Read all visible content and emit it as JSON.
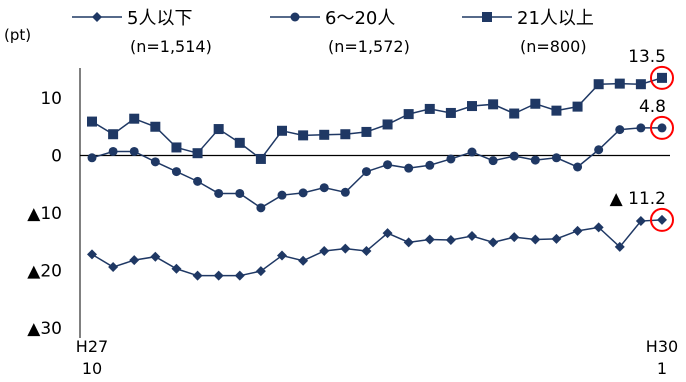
{
  "chart_data": {
    "type": "line",
    "unit_label": "(pt)",
    "ylim": [
      -30,
      15
    ],
    "y_ticks": [
      {
        "value": 10,
        "label": "10"
      },
      {
        "value": 0,
        "label": "0"
      },
      {
        "value": -10,
        "label": "▲10"
      },
      {
        "value": -20,
        "label": "▲20"
      },
      {
        "value": -30,
        "label": "▲30"
      }
    ],
    "x_ticks": [
      {
        "index": 0,
        "line1": "H27",
        "line2": "10"
      },
      {
        "index": 27,
        "line1": "H30",
        "line2": "1"
      }
    ],
    "series": [
      {
        "name": "5人以下",
        "sample": "(n=1,514)",
        "marker": "diamond",
        "values": [
          -17.2,
          -19.4,
          -18.2,
          -17.6,
          -19.7,
          -20.9,
          -20.9,
          -20.9,
          -20.1,
          -17.4,
          -18.3,
          -16.6,
          -16.2,
          -16.6,
          -13.5,
          -15.1,
          -14.6,
          -14.7,
          -14.0,
          -15.1,
          -14.2,
          -14.6,
          -14.5,
          -13.1,
          -12.5,
          -15.9,
          -11.4,
          -11.2
        ]
      },
      {
        "name": "6～20人",
        "sample": "(n=1,572)",
        "marker": "circle",
        "values": [
          -0.4,
          0.7,
          0.7,
          -1.1,
          -2.8,
          -4.5,
          -6.6,
          -6.6,
          -9.1,
          -6.9,
          -6.5,
          -5.6,
          -6.4,
          -2.8,
          -1.6,
          -2.2,
          -1.7,
          -0.6,
          0.6,
          -0.9,
          -0.1,
          -0.8,
          -0.4,
          -2.0,
          1.0,
          4.5,
          4.8,
          4.8
        ]
      },
      {
        "name": "21人以上",
        "sample": "(n=800)",
        "marker": "square",
        "values": [
          5.9,
          3.7,
          6.4,
          5.0,
          1.4,
          0.4,
          4.6,
          2.2,
          -0.6,
          4.3,
          3.5,
          3.6,
          3.7,
          4.1,
          5.4,
          7.2,
          8.1,
          7.4,
          8.6,
          8.9,
          7.3,
          9.0,
          7.8,
          8.5,
          12.4,
          12.5,
          12.4,
          13.5
        ]
      }
    ],
    "annotations": [
      {
        "series": 2,
        "index": 27,
        "text": "13.5"
      },
      {
        "series": 1,
        "index": 27,
        "text": "4.8"
      },
      {
        "series": 0,
        "index": 27,
        "text": "▲ 11.2"
      }
    ],
    "highlight_color": "#ff0000",
    "line_color": "#1f3864",
    "axis_color": "#000000",
    "grid": false,
    "legend_position": "top"
  }
}
